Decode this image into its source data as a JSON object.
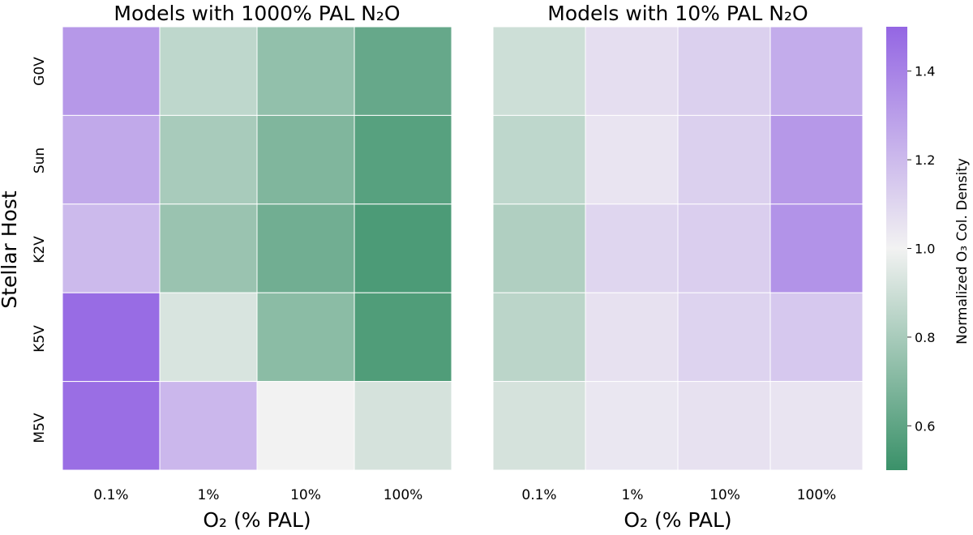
{
  "chart_data": [
    {
      "type": "heatmap",
      "title": "Models with 1000% PAL N₂O",
      "xlabel": "O₂ (% PAL)",
      "ylabel": "Stellar Host",
      "x_categories": [
        "0.1%",
        "1%",
        "10%",
        "100%"
      ],
      "y_categories": [
        "G0V",
        "Sun",
        "K2V",
        "K5V",
        "M5V"
      ],
      "values": [
        [
          1.32,
          0.86,
          0.74,
          0.62
        ],
        [
          1.26,
          0.8,
          0.69,
          0.58
        ],
        [
          1.2,
          0.76,
          0.65,
          0.55
        ],
        [
          1.48,
          0.93,
          0.72,
          0.56
        ],
        [
          1.47,
          1.21,
          1.0,
          0.92
        ]
      ]
    },
    {
      "type": "heatmap",
      "title": "Models with 10% PAL N₂O",
      "xlabel": "O₂ (% PAL)",
      "x_categories": [
        "0.1%",
        "1%",
        "10%",
        "100%"
      ],
      "y_categories": [
        "G0V",
        "Sun",
        "K2V",
        "K5V",
        "M5V"
      ],
      "values": [
        [
          0.9,
          1.07,
          1.12,
          1.25
        ],
        [
          0.86,
          1.05,
          1.12,
          1.32
        ],
        [
          0.82,
          1.1,
          1.13,
          1.34
        ],
        [
          0.85,
          1.06,
          1.11,
          1.15
        ],
        [
          0.92,
          1.04,
          1.06,
          1.05
        ]
      ]
    }
  ],
  "colorbar": {
    "label": "Normalized O₃ Col. Density",
    "range": [
      0.5,
      1.5
    ],
    "ticks": [
      "0.6",
      "0.8",
      "1.0",
      "1.2",
      "1.4"
    ],
    "tick_values": [
      0.6,
      0.8,
      1.0,
      1.2,
      1.4
    ],
    "colors": {
      "low": "#3a9169",
      "mid": "#f2f2f2",
      "high": "#9466e3"
    }
  }
}
